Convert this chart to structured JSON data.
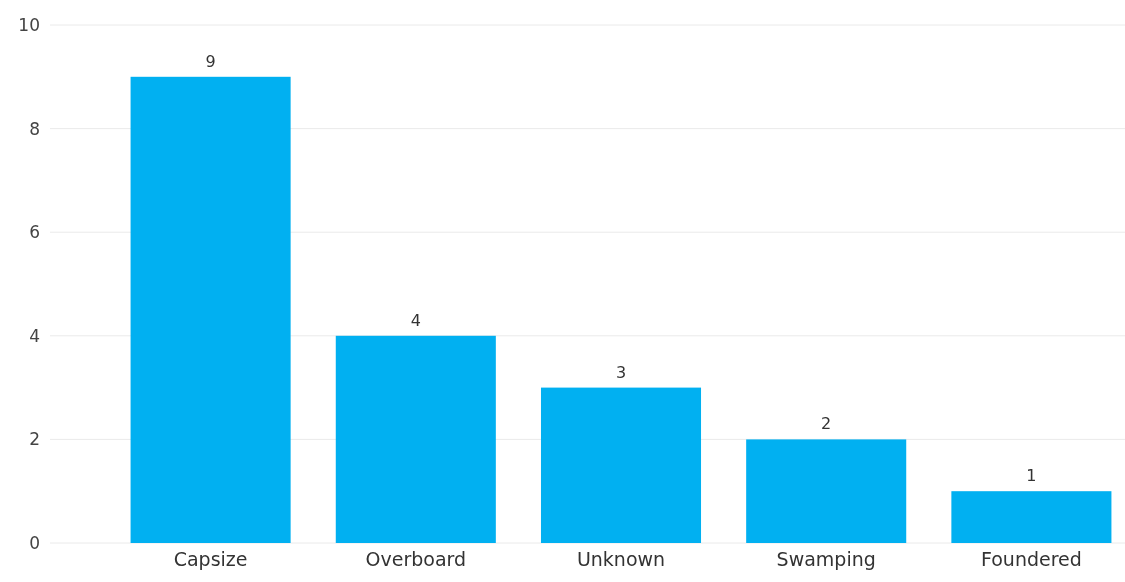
{
  "chart_data": {
    "type": "bar",
    "categories": [
      "Capsize",
      "Overboard",
      "Unknown",
      "Swamping",
      "Foundered"
    ],
    "values": [
      9,
      4,
      3,
      2,
      1
    ],
    "color": "#01b0f1",
    "ylim": [
      0,
      10
    ],
    "yticks": [
      0,
      2,
      4,
      6,
      8,
      10
    ],
    "grid": "y",
    "data_labels": true
  }
}
